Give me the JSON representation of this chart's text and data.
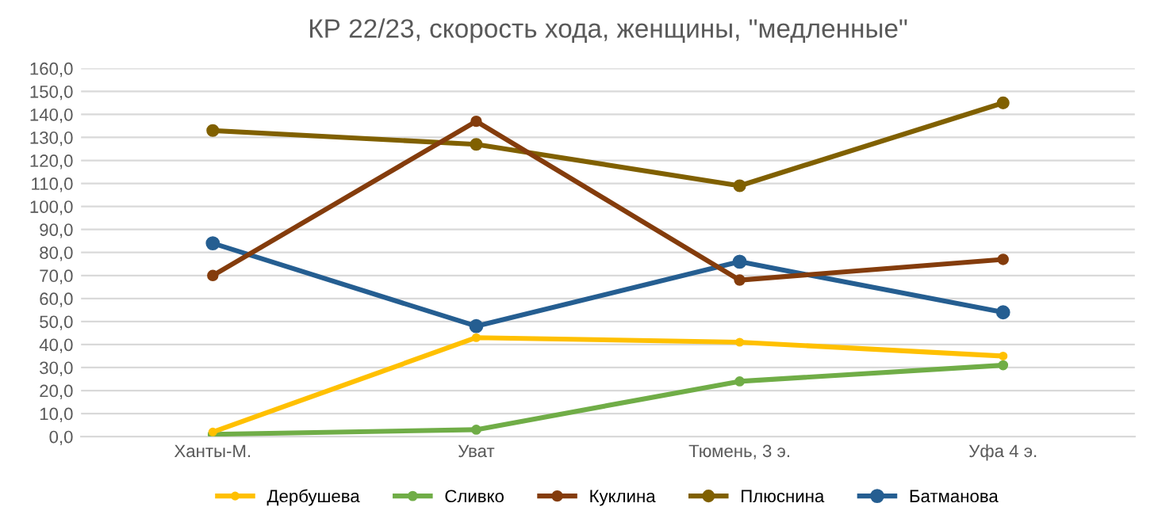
{
  "chart_data": {
    "type": "line",
    "title": "КР 22/23, скорость хода, женщины, \"медленные\"",
    "categories": [
      "Ханты-М.",
      "Уват",
      "Тюмень, 3 э.",
      "Уфа 4 э."
    ],
    "series": [
      {
        "name": "Дербушева",
        "color": "#ffc000",
        "values": [
          2,
          43,
          41,
          35
        ]
      },
      {
        "name": "Сливко",
        "color": "#70ad47",
        "values": [
          1,
          3,
          24,
          31
        ]
      },
      {
        "name": "Куклина",
        "color": "#843c0c",
        "values": [
          70,
          137,
          68,
          77
        ]
      },
      {
        "name": "Плюснина",
        "color": "#806000",
        "values": [
          133,
          127,
          109,
          145
        ]
      },
      {
        "name": "Батманова",
        "color": "#255e91",
        "values": [
          84,
          48,
          76,
          54
        ]
      }
    ],
    "ylim": [
      0,
      160
    ],
    "yticks": [
      {
        "value": 0,
        "label": "0,0"
      },
      {
        "value": 10,
        "label": "10,0"
      },
      {
        "value": 20,
        "label": "20,0"
      },
      {
        "value": 30,
        "label": "30,0"
      },
      {
        "value": 40,
        "label": "40,0"
      },
      {
        "value": 50,
        "label": "50,0"
      },
      {
        "value": 60,
        "label": "60,0"
      },
      {
        "value": 70,
        "label": "70,0"
      },
      {
        "value": 80,
        "label": "80,0"
      },
      {
        "value": 90,
        "label": "90,0"
      },
      {
        "value": 100,
        "label": "100,0"
      },
      {
        "value": 110,
        "label": "110,0"
      },
      {
        "value": 120,
        "label": "120,0"
      },
      {
        "value": 130,
        "label": "130,0"
      },
      {
        "value": 140,
        "label": "140,0"
      },
      {
        "value": 150,
        "label": "150,0"
      },
      {
        "value": 160,
        "label": "160,0"
      }
    ],
    "grid": "y",
    "legend": "bottom",
    "marker": "circle",
    "line_style": "solid"
  }
}
